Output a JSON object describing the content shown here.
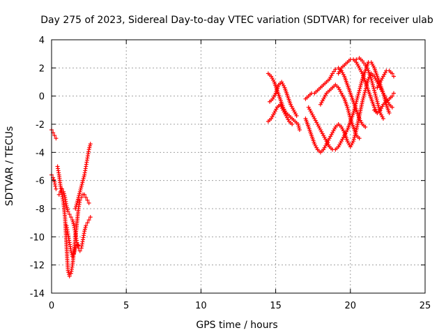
{
  "chart_data": {
    "type": "scatter",
    "title": "Day 275 of 2023, Sidereal Day-to-day VTEC variation (SDTVAR) for receiver ulab",
    "xlabel": "GPS time / hours",
    "ylabel": "SDTVAR / TECUs",
    "xlim": [
      0,
      25
    ],
    "ylim": [
      -14,
      4
    ],
    "xticks": [
      0,
      5,
      10,
      15,
      20,
      25
    ],
    "xtick_labels": [
      "0",
      "5",
      "10",
      "15",
      "20",
      "25"
    ],
    "yticks": [
      -14,
      -12,
      -10,
      -8,
      -6,
      -4,
      -2,
      0,
      2,
      4
    ],
    "ytick_labels": [
      "-14",
      "-12",
      "-10",
      "-8",
      "-6",
      "-4",
      "-2",
      "0",
      "2",
      "4"
    ],
    "grid": true,
    "marker": "+",
    "color": "#ff0000",
    "series": [
      {
        "name": "SDTVAR",
        "tracks": [
          [
            [
              0.0,
              -2.4
            ],
            [
              0.1,
              -2.6
            ],
            [
              0.2,
              -2.8
            ],
            [
              0.3,
              -3.0
            ]
          ],
          [
            [
              0.0,
              -5.6
            ],
            [
              0.1,
              -5.8
            ],
            [
              0.2,
              -6.1
            ],
            [
              0.25,
              -6.4
            ],
            [
              0.3,
              -6.6
            ]
          ],
          [
            [
              0.4,
              -5.0
            ],
            [
              0.5,
              -5.6
            ],
            [
              0.6,
              -6.4
            ],
            [
              0.7,
              -7.0
            ],
            [
              0.8,
              -7.6
            ],
            [
              0.9,
              -8.6
            ],
            [
              0.95,
              -9.6
            ],
            [
              1.0,
              -10.6
            ],
            [
              1.05,
              -11.6
            ],
            [
              1.1,
              -12.4
            ],
            [
              1.2,
              -12.8
            ],
            [
              1.3,
              -12.6
            ],
            [
              1.4,
              -12.0
            ],
            [
              1.5,
              -11.0
            ],
            [
              1.6,
              -10.0
            ],
            [
              1.7,
              -9.0
            ],
            [
              1.8,
              -8.0
            ],
            [
              1.9,
              -7.4
            ],
            [
              2.0,
              -7.2
            ],
            [
              2.1,
              -7.0
            ],
            [
              2.2,
              -7.0
            ],
            [
              2.3,
              -7.2
            ],
            [
              2.4,
              -7.4
            ],
            [
              2.5,
              -7.6
            ]
          ],
          [
            [
              0.5,
              -7.0
            ],
            [
              0.6,
              -6.8
            ],
            [
              0.7,
              -6.6
            ],
            [
              0.8,
              -6.8
            ],
            [
              0.9,
              -7.2
            ],
            [
              1.0,
              -7.8
            ],
            [
              1.1,
              -8.2
            ],
            [
              1.2,
              -8.4
            ],
            [
              1.3,
              -8.6
            ],
            [
              1.4,
              -8.8
            ],
            [
              1.5,
              -9.2
            ],
            [
              1.6,
              -9.8
            ],
            [
              1.7,
              -10.4
            ],
            [
              1.8,
              -10.8
            ],
            [
              1.9,
              -11.0
            ],
            [
              2.0,
              -10.8
            ],
            [
              2.1,
              -10.2
            ],
            [
              2.2,
              -9.6
            ],
            [
              2.3,
              -9.2
            ],
            [
              2.4,
              -9.0
            ],
            [
              2.5,
              -8.8
            ],
            [
              2.6,
              -8.6
            ]
          ],
          [
            [
              1.6,
              -8.0
            ],
            [
              1.7,
              -7.6
            ],
            [
              1.8,
              -7.2
            ],
            [
              1.9,
              -6.8
            ],
            [
              2.0,
              -6.4
            ],
            [
              2.1,
              -6.0
            ],
            [
              2.2,
              -5.6
            ],
            [
              2.3,
              -5.0
            ],
            [
              2.4,
              -4.4
            ],
            [
              2.5,
              -3.8
            ],
            [
              2.6,
              -3.4
            ]
          ],
          [
            [
              1.0,
              -9.2
            ],
            [
              1.1,
              -9.8
            ],
            [
              1.2,
              -10.4
            ],
            [
              1.3,
              -11.0
            ],
            [
              1.4,
              -11.4
            ],
            [
              1.5,
              -11.2
            ],
            [
              1.6,
              -10.8
            ],
            [
              1.7,
              -10.6
            ],
            [
              1.8,
              -10.6
            ]
          ],
          [
            [
              14.5,
              1.6
            ],
            [
              14.7,
              1.4
            ],
            [
              14.9,
              1.0
            ],
            [
              15.1,
              0.4
            ],
            [
              15.3,
              -0.2
            ],
            [
              15.5,
              -0.8
            ],
            [
              15.7,
              -1.2
            ],
            [
              15.9,
              -1.4
            ],
            [
              16.1,
              -1.6
            ],
            [
              16.3,
              -1.8
            ],
            [
              16.5,
              -2.0
            ],
            [
              16.6,
              -2.4
            ]
          ],
          [
            [
              14.6,
              -0.4
            ],
            [
              14.8,
              -0.2
            ],
            [
              15.0,
              0.2
            ],
            [
              15.2,
              0.8
            ],
            [
              15.4,
              1.0
            ],
            [
              15.6,
              0.6
            ],
            [
              15.8,
              0.0
            ],
            [
              16.0,
              -0.6
            ],
            [
              16.2,
              -1.0
            ],
            [
              16.4,
              -1.4
            ]
          ],
          [
            [
              14.5,
              -1.8
            ],
            [
              14.7,
              -1.6
            ],
            [
              14.9,
              -1.2
            ],
            [
              15.1,
              -0.8
            ],
            [
              15.3,
              -0.6
            ],
            [
              15.5,
              -1.0
            ],
            [
              15.7,
              -1.4
            ],
            [
              15.9,
              -1.8
            ],
            [
              16.1,
              -2.0
            ]
          ],
          [
            [
              17.0,
              -0.2
            ],
            [
              17.2,
              0.0
            ],
            [
              17.4,
              0.2
            ],
            [
              17.6,
              0.2
            ],
            [
              17.8,
              0.4
            ],
            [
              18.0,
              0.6
            ],
            [
              18.2,
              0.8
            ],
            [
              18.4,
              1.0
            ],
            [
              18.6,
              1.2
            ],
            [
              18.8,
              1.6
            ],
            [
              19.0,
              1.9
            ],
            [
              19.2,
              2.0
            ],
            [
              19.4,
              1.8
            ],
            [
              19.6,
              1.4
            ],
            [
              19.8,
              0.8
            ],
            [
              20.0,
              0.2
            ],
            [
              20.2,
              -0.4
            ],
            [
              20.4,
              -1.0
            ],
            [
              20.6,
              -1.6
            ],
            [
              20.8,
              -2.0
            ],
            [
              21.0,
              -2.2
            ]
          ],
          [
            [
              17.0,
              -1.6
            ],
            [
              17.2,
              -2.2
            ],
            [
              17.4,
              -2.8
            ],
            [
              17.6,
              -3.4
            ],
            [
              17.8,
              -3.8
            ],
            [
              18.0,
              -4.0
            ],
            [
              18.2,
              -3.8
            ],
            [
              18.4,
              -3.4
            ],
            [
              18.6,
              -3.0
            ],
            [
              18.8,
              -2.6
            ],
            [
              19.0,
              -2.2
            ],
            [
              19.2,
              -2.0
            ],
            [
              19.4,
              -2.2
            ],
            [
              19.6,
              -2.6
            ],
            [
              19.8,
              -3.2
            ],
            [
              20.0,
              -3.6
            ],
            [
              20.2,
              -3.2
            ],
            [
              20.4,
              -2.4
            ],
            [
              20.6,
              -1.4
            ],
            [
              20.8,
              -0.4
            ],
            [
              21.0,
              0.4
            ],
            [
              21.2,
              1.2
            ],
            [
              21.4,
              1.6
            ],
            [
              21.6,
              1.4
            ],
            [
              21.8,
              1.0
            ],
            [
              22.0,
              0.6
            ],
            [
              22.2,
              0.2
            ],
            [
              22.4,
              -0.2
            ],
            [
              22.6,
              -0.6
            ],
            [
              22.8,
              -0.8
            ]
          ],
          [
            [
              17.2,
              -0.8
            ],
            [
              17.4,
              -1.2
            ],
            [
              17.6,
              -1.6
            ],
            [
              17.8,
              -2.0
            ],
            [
              18.0,
              -2.4
            ],
            [
              18.2,
              -2.8
            ],
            [
              18.4,
              -3.2
            ],
            [
              18.6,
              -3.6
            ],
            [
              18.8,
              -3.8
            ],
            [
              19.0,
              -3.8
            ],
            [
              19.2,
              -3.6
            ],
            [
              19.4,
              -3.2
            ],
            [
              19.6,
              -2.8
            ],
            [
              19.8,
              -2.4
            ],
            [
              20.0,
              -1.8
            ],
            [
              20.2,
              -1.2
            ],
            [
              20.4,
              -0.4
            ],
            [
              20.6,
              0.4
            ],
            [
              20.8,
              1.2
            ],
            [
              21.0,
              1.8
            ],
            [
              21.2,
              2.4
            ],
            [
              21.4,
              2.4
            ],
            [
              21.6,
              2.0
            ],
            [
              21.8,
              1.4
            ],
            [
              22.0,
              0.8
            ],
            [
              22.2,
              0.2
            ],
            [
              22.4,
              -0.6
            ],
            [
              22.6,
              -1.2
            ]
          ],
          [
            [
              18.0,
              -0.6
            ],
            [
              18.2,
              -0.2
            ],
            [
              18.4,
              0.2
            ],
            [
              18.6,
              0.4
            ],
            [
              18.8,
              0.6
            ],
            [
              19.0,
              0.8
            ],
            [
              19.2,
              0.6
            ],
            [
              19.4,
              0.2
            ],
            [
              19.6,
              -0.2
            ],
            [
              19.8,
              -0.8
            ],
            [
              20.0,
              -1.6
            ],
            [
              20.2,
              -2.2
            ],
            [
              20.4,
              -2.8
            ],
            [
              20.6,
              -3.0
            ]
          ],
          [
            [
              19.2,
              1.6
            ],
            [
              19.4,
              2.0
            ],
            [
              19.6,
              2.2
            ],
            [
              19.8,
              2.4
            ],
            [
              20.0,
              2.6
            ],
            [
              20.2,
              2.6
            ],
            [
              20.4,
              2.4
            ],
            [
              20.6,
              2.0
            ],
            [
              20.8,
              1.6
            ],
            [
              21.0,
              1.0
            ],
            [
              21.2,
              0.4
            ],
            [
              21.4,
              -0.2
            ],
            [
              21.6,
              -0.8
            ],
            [
              21.8,
              -1.2
            ]
          ],
          [
            [
              21.8,
              0.6
            ],
            [
              22.0,
              1.0
            ],
            [
              22.2,
              1.4
            ],
            [
              22.4,
              1.8
            ],
            [
              22.6,
              1.8
            ],
            [
              22.8,
              1.6
            ],
            [
              22.9,
              1.4
            ]
          ],
          [
            [
              21.6,
              -1.0
            ],
            [
              21.8,
              -1.2
            ],
            [
              22.0,
              -1.0
            ],
            [
              22.2,
              -0.6
            ],
            [
              22.4,
              -0.4
            ],
            [
              22.6,
              -0.2
            ],
            [
              22.8,
              0.0
            ],
            [
              22.9,
              0.2
            ]
          ],
          [
            [
              20.4,
              2.6
            ],
            [
              20.6,
              2.7
            ],
            [
              20.8,
              2.5
            ],
            [
              21.0,
              2.2
            ],
            [
              21.2,
              1.8
            ],
            [
              21.4,
              1.2
            ],
            [
              21.6,
              0.4
            ],
            [
              21.8,
              -0.4
            ],
            [
              22.0,
              -1.2
            ],
            [
              22.2,
              -1.6
            ]
          ]
        ]
      }
    ]
  }
}
